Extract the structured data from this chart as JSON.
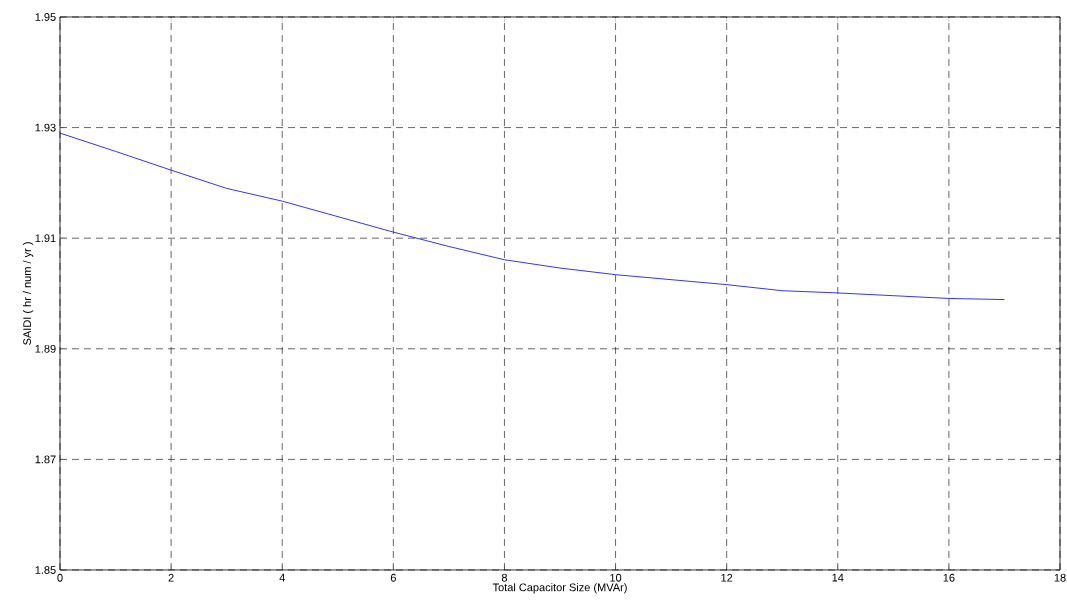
{
  "chart_data": {
    "type": "line",
    "xlabel": "Total Capacitor Size (MVAr)",
    "ylabel": "SAIDI ( hr / num / yr )",
    "x": [
      0,
      1,
      2,
      3,
      4,
      5,
      6,
      7,
      8,
      9,
      10,
      11,
      12,
      13,
      14,
      15,
      16,
      17
    ],
    "series": [
      {
        "color": "#0000ff",
        "values": [
          1.929,
          1.9257,
          1.9223,
          1.919,
          1.9167,
          1.9139,
          1.9111,
          1.9085,
          1.9061,
          1.9046,
          1.9034,
          1.9025,
          1.9016,
          1.9005,
          1.9001,
          1.8996,
          1.8991,
          1.8989
        ]
      }
    ],
    "xlim": [
      0,
      18
    ],
    "xticks": [
      0,
      2,
      4,
      6,
      8,
      10,
      12,
      14,
      16,
      18
    ],
    "ylim": [
      1.85,
      1.95
    ],
    "yticks": [
      1.85,
      1.87,
      1.89,
      1.91,
      1.93,
      1.95
    ],
    "grid": true,
    "line_style": "solid",
    "marker": "none"
  }
}
